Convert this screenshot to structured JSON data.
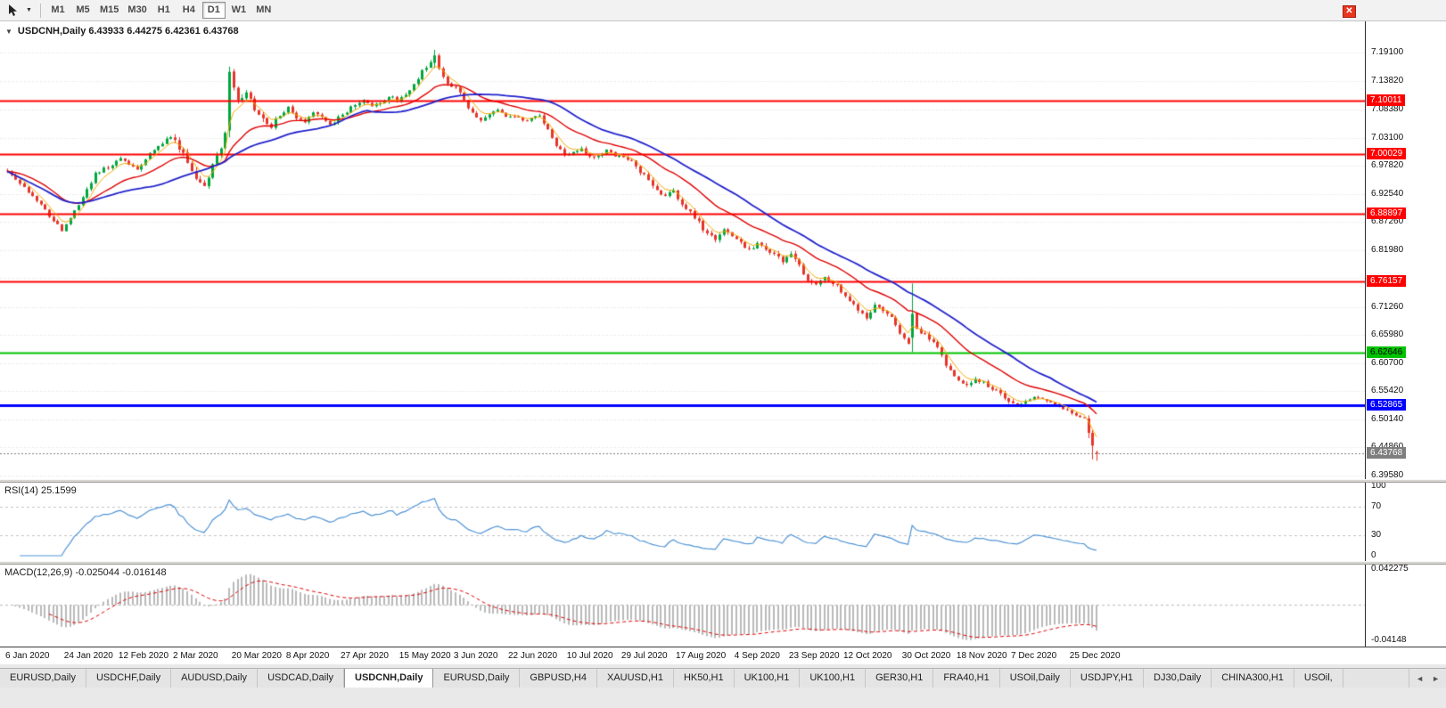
{
  "ui": {
    "glyphs": {
      "collapse": "▼",
      "close": "✕",
      "caret": "▼",
      "scroll_left": "◄",
      "scroll_right": "►"
    }
  },
  "toolbar": {
    "timeframes": [
      "M1",
      "M5",
      "M15",
      "M30",
      "H1",
      "H4",
      "D1",
      "W1",
      "MN"
    ],
    "active_timeframe": "D1"
  },
  "chart": {
    "title": "USDCNH,Daily",
    "ohlc_text": "USDCNH,Daily 6.43933 6.44275 6.42361 6.43768"
  },
  "indicators": {
    "rsi_label": "RSI(14) 25.1599",
    "macd_label": "MACD(12,26,9) -0.025044 -0.016148"
  },
  "tabs": {
    "items": [
      {
        "label": "EURUSD,Daily",
        "active": false
      },
      {
        "label": "USDCHF,Daily",
        "active": false
      },
      {
        "label": "AUDUSD,Daily",
        "active": false
      },
      {
        "label": "USDCAD,Daily",
        "active": false
      },
      {
        "label": "USDCNH,Daily",
        "active": true
      },
      {
        "label": "EURUSD,Daily",
        "active": false
      },
      {
        "label": "GBPUSD,H4",
        "active": false
      },
      {
        "label": "XAUUSD,H1",
        "active": false
      },
      {
        "label": "HK50,H1",
        "active": false
      },
      {
        "label": "UK100,H1",
        "active": false
      },
      {
        "label": "UK100,H1",
        "active": false
      },
      {
        "label": "GER30,H1",
        "active": false
      },
      {
        "label": "FRA40,H1",
        "active": false
      },
      {
        "label": "USOil,Daily",
        "active": false
      },
      {
        "label": "USDJPY,H1",
        "active": false
      },
      {
        "label": "DJ30,Daily",
        "active": false
      },
      {
        "label": "CHINA300,H1",
        "active": false
      },
      {
        "label": "USOil,",
        "active": false
      }
    ]
  },
  "chart_data": {
    "type": "candlestick",
    "symbol": "USDCNH",
    "timeframe": "Daily",
    "current_ohlc": {
      "open": 6.43933,
      "high": 6.44275,
      "low": 6.42361,
      "close": 6.43768
    },
    "current_price": 6.43768,
    "price_range": [
      6.389,
      7.25
    ],
    "price_axis_ticks": [
      7.191,
      7.1382,
      7.0838,
      7.031,
      6.9782,
      6.9254,
      6.8726,
      6.8198,
      6.767,
      6.7126,
      6.6598,
      6.607,
      6.5542,
      6.5014,
      6.4486,
      6.3958
    ],
    "hlines": [
      {
        "value": 7.10011,
        "color": "#ff0000",
        "text": "#ffffff",
        "width": 2
      },
      {
        "value": 7.00029,
        "color": "#ff0000",
        "text": "#ffffff",
        "width": 2
      },
      {
        "value": 6.88897,
        "color": "#ff0000",
        "text": "#ffffff",
        "width": 2
      },
      {
        "value": 6.76157,
        "color": "#ff0000",
        "text": "#ffffff",
        "width": 2
      },
      {
        "value": 6.62646,
        "color": "#00c300",
        "text": "#000000",
        "width": 2
      },
      {
        "value": 6.52865,
        "color": "#0000ff",
        "text": "#ffffff",
        "width": 3
      }
    ],
    "x_axis": [
      {
        "label": "6 Jan 2020",
        "day": 0
      },
      {
        "label": "24 Jan 2020",
        "day": 14
      },
      {
        "label": "12 Feb 2020",
        "day": 27
      },
      {
        "label": "2 Mar 2020",
        "day": 40
      },
      {
        "label": "20 Mar 2020",
        "day": 54
      },
      {
        "label": "8 Apr 2020",
        "day": 67
      },
      {
        "label": "27 Apr 2020",
        "day": 80
      },
      {
        "label": "15 May 2020",
        "day": 94
      },
      {
        "label": "3 Jun 2020",
        "day": 107
      },
      {
        "label": "22 Jun 2020",
        "day": 120
      },
      {
        "label": "10 Jul 2020",
        "day": 134
      },
      {
        "label": "29 Jul 2020",
        "day": 147
      },
      {
        "label": "17 Aug 2020",
        "day": 160
      },
      {
        "label": "4 Sep 2020",
        "day": 174
      },
      {
        "label": "23 Sep 2020",
        "day": 187
      },
      {
        "label": "12 Oct 2020",
        "day": 200
      },
      {
        "label": "30 Oct 2020",
        "day": 214
      },
      {
        "label": "18 Nov 2020",
        "day": 227
      },
      {
        "label": "7 Dec 2020",
        "day": 240
      },
      {
        "label": "25 Dec 2020",
        "day": 254
      }
    ],
    "num_candles": 261,
    "seed": 1337,
    "noise_zones": [
      [
        0,
        0.0045
      ],
      [
        40,
        0.0075
      ],
      [
        62,
        0.005
      ],
      [
        96,
        0.0045
      ],
      [
        128,
        0.004
      ],
      [
        150,
        0.0055
      ],
      [
        214,
        0.005
      ],
      [
        246,
        0.0035
      ]
    ],
    "waypoints": [
      [
        0,
        6.97
      ],
      [
        2,
        6.952
      ],
      [
        4,
        6.938
      ],
      [
        6,
        6.922
      ],
      [
        8,
        6.908
      ],
      [
        10,
        6.885
      ],
      [
        12,
        6.866
      ],
      [
        13,
        6.858
      ],
      [
        15,
        6.882
      ],
      [
        17,
        6.906
      ],
      [
        19,
        6.932
      ],
      [
        21,
        6.962
      ],
      [
        23,
        6.972
      ],
      [
        25,
        6.982
      ],
      [
        27,
        6.993
      ],
      [
        29,
        6.979
      ],
      [
        31,
        6.972
      ],
      [
        33,
        6.991
      ],
      [
        35,
        7.008
      ],
      [
        37,
        7.021
      ],
      [
        39,
        7.034
      ],
      [
        41,
        7.012
      ],
      [
        43,
        6.989
      ],
      [
        45,
        6.952
      ],
      [
        47,
        6.941
      ],
      [
        49,
        6.976
      ],
      [
        51,
        7.012
      ],
      [
        52,
        7.04
      ],
      [
        53,
        7.155
      ],
      [
        54,
        7.122
      ],
      [
        55,
        7.098
      ],
      [
        57,
        7.114
      ],
      [
        59,
        7.086
      ],
      [
        61,
        7.063
      ],
      [
        63,
        7.053
      ],
      [
        65,
        7.074
      ],
      [
        67,
        7.091
      ],
      [
        69,
        7.071
      ],
      [
        71,
        7.063
      ],
      [
        73,
        7.081
      ],
      [
        75,
        7.069
      ],
      [
        77,
        7.058
      ],
      [
        79,
        7.068
      ],
      [
        81,
        7.081
      ],
      [
        83,
        7.094
      ],
      [
        85,
        7.101
      ],
      [
        87,
        7.089
      ],
      [
        89,
        7.097
      ],
      [
        91,
        7.109
      ],
      [
        93,
        7.101
      ],
      [
        95,
        7.111
      ],
      [
        97,
        7.129
      ],
      [
        99,
        7.156
      ],
      [
        101,
        7.176
      ],
      [
        102,
        7.186
      ],
      [
        103,
        7.161
      ],
      [
        105,
        7.133
      ],
      [
        107,
        7.127
      ],
      [
        109,
        7.101
      ],
      [
        111,
        7.079
      ],
      [
        113,
        7.063
      ],
      [
        115,
        7.074
      ],
      [
        117,
        7.081
      ],
      [
        119,
        7.069
      ],
      [
        121,
        7.072
      ],
      [
        123,
        7.061
      ],
      [
        125,
        7.067
      ],
      [
        127,
        7.074
      ],
      [
        129,
        7.046
      ],
      [
        131,
        7.016
      ],
      [
        133,
        6.998
      ],
      [
        135,
        7.002
      ],
      [
        137,
        7.009
      ],
      [
        139,
        6.993
      ],
      [
        141,
        6.998
      ],
      [
        143,
        7.006
      ],
      [
        145,
        6.999
      ],
      [
        147,
        6.996
      ],
      [
        149,
        6.986
      ],
      [
        151,
        6.969
      ],
      [
        153,
        6.949
      ],
      [
        155,
        6.931
      ],
      [
        157,
        6.923
      ],
      [
        159,
        6.931
      ],
      [
        161,
        6.909
      ],
      [
        163,
        6.889
      ],
      [
        165,
        6.871
      ],
      [
        167,
        6.849
      ],
      [
        169,
        6.839
      ],
      [
        171,
        6.856
      ],
      [
        173,
        6.846
      ],
      [
        175,
        6.833
      ],
      [
        177,
        6.821
      ],
      [
        179,
        6.833
      ],
      [
        181,
        6.823
      ],
      [
        183,
        6.811
      ],
      [
        185,
        6.799
      ],
      [
        187,
        6.809
      ],
      [
        189,
        6.789
      ],
      [
        191,
        6.763
      ],
      [
        193,
        6.753
      ],
      [
        195,
        6.773
      ],
      [
        197,
        6.759
      ],
      [
        199,
        6.743
      ],
      [
        201,
        6.723
      ],
      [
        203,
        6.706
      ],
      [
        205,
        6.693
      ],
      [
        207,
        6.713
      ],
      [
        209,
        6.703
      ],
      [
        211,
        6.693
      ],
      [
        213,
        6.663
      ],
      [
        215,
        6.643
      ],
      [
        216,
        6.7
      ],
      [
        217,
        6.673
      ],
      [
        219,
        6.659
      ],
      [
        221,
        6.649
      ],
      [
        223,
        6.619
      ],
      [
        225,
        6.593
      ],
      [
        227,
        6.573
      ],
      [
        229,
        6.563
      ],
      [
        231,
        6.579
      ],
      [
        233,
        6.569
      ],
      [
        235,
        6.559
      ],
      [
        237,
        6.549
      ],
      [
        239,
        6.537
      ],
      [
        241,
        6.529
      ],
      [
        243,
        6.539
      ],
      [
        245,
        6.546
      ],
      [
        247,
        6.543
      ],
      [
        249,
        6.534
      ],
      [
        251,
        6.526
      ],
      [
        253,
        6.519
      ],
      [
        255,
        6.509
      ],
      [
        257,
        6.505
      ],
      [
        258,
        6.499
      ],
      [
        259,
        6.452
      ],
      [
        260,
        6.438
      ]
    ],
    "special_candles": [
      {
        "day": 53,
        "open": 7.045,
        "high": 7.165,
        "low": 7.032,
        "close": 7.155
      },
      {
        "day": 102,
        "open": 7.172,
        "high": 7.1964,
        "low": 7.162,
        "close": 7.186
      },
      {
        "day": 216,
        "open": 6.655,
        "high": 6.757,
        "low": 6.628,
        "close": 6.7
      },
      {
        "day": 258,
        "open": 6.503,
        "high": 6.509,
        "low": 6.466,
        "close": 6.476
      },
      {
        "day": 259,
        "open": 6.476,
        "high": 6.481,
        "low": 6.426,
        "close": 6.452
      },
      {
        "day": 260,
        "open": 6.43933,
        "high": 6.44275,
        "low": 6.42361,
        "close": 6.43768
      }
    ],
    "moving_averages": [
      {
        "method": "ema",
        "period": 5,
        "color": "#f2a900",
        "width": 1
      },
      {
        "method": "ema",
        "period": 20,
        "color": "#e00000",
        "width": 1.4
      },
      {
        "method": "sma",
        "period": 34,
        "color": "#2222cc",
        "width": 1.8
      }
    ],
    "rsi": {
      "period": 14,
      "value": 25.1599,
      "levels": [
        100,
        70,
        30,
        0
      ],
      "dash_levels": [
        70,
        30
      ],
      "color": "#4f93d4"
    },
    "macd": {
      "fast": 12,
      "slow": 26,
      "signal": 9,
      "values": [
        -0.025044,
        -0.016148
      ],
      "scale": {
        "max": 0.042275,
        "min": -0.04148
      },
      "axis_max_label": "0.042275",
      "axis_min_label": "-0.04148"
    },
    "colors": {
      "grid": "#dcdcdc",
      "up": "#00a63e",
      "down": "#e5352b",
      "current_badge": "#7e7e7e",
      "macd_bars": "#b9b9b9",
      "macd_signal": "#e00000"
    }
  }
}
